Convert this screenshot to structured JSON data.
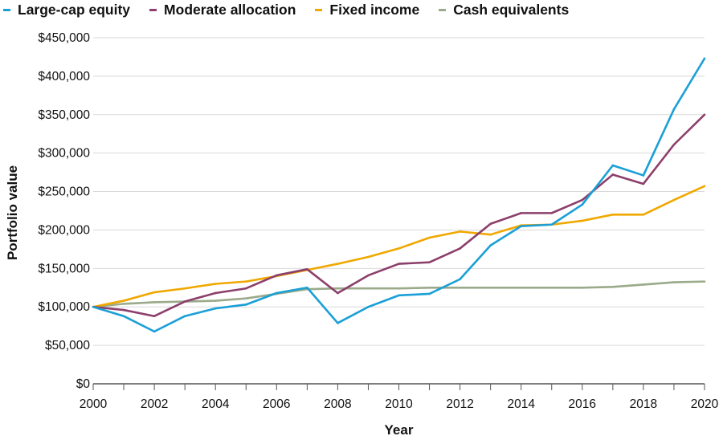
{
  "chart_data": {
    "type": "line",
    "title": "",
    "xlabel": "Year",
    "ylabel": "Portfolio value",
    "xlim": [
      2000,
      2020
    ],
    "ylim": [
      0,
      450000
    ],
    "grid": "horizontal",
    "legend_position": "top-left",
    "x": [
      2000,
      2001,
      2002,
      2003,
      2004,
      2005,
      2006,
      2007,
      2008,
      2009,
      2010,
      2011,
      2012,
      2013,
      2014,
      2015,
      2016,
      2017,
      2018,
      2019,
      2020
    ],
    "x_tick_labels": [
      "2000",
      "2002",
      "2004",
      "2006",
      "2008",
      "2010",
      "2012",
      "2014",
      "2016",
      "2018",
      "2020"
    ],
    "x_tick_values": [
      2000,
      2002,
      2004,
      2006,
      2008,
      2010,
      2012,
      2014,
      2016,
      2018,
      2020
    ],
    "y_tick_labels": [
      "$0",
      "$50,000",
      "$100,000",
      "$150,000",
      "$200,000",
      "$250,000",
      "$300,000",
      "$350,000",
      "$400,000",
      "$450,000"
    ],
    "y_tick_values": [
      0,
      50000,
      100000,
      150000,
      200000,
      250000,
      300000,
      350000,
      400000,
      450000
    ],
    "series": [
      {
        "name": "Large-cap equity",
        "color": "#1a9fd6",
        "values": [
          100000,
          88000,
          68000,
          88000,
          98000,
          103000,
          118000,
          125000,
          79000,
          100000,
          115000,
          117000,
          136000,
          180000,
          205000,
          207000,
          233000,
          284000,
          271000,
          357000,
          423000
        ]
      },
      {
        "name": "Moderate allocation",
        "color": "#8c3f6b",
        "values": [
          100000,
          96000,
          88000,
          107000,
          118000,
          124000,
          141000,
          149000,
          118000,
          141000,
          156000,
          158000,
          176000,
          208000,
          222000,
          222000,
          239000,
          272000,
          260000,
          311000,
          350000
        ]
      },
      {
        "name": "Fixed income",
        "color": "#f0a800",
        "values": [
          100000,
          108000,
          119000,
          124000,
          130000,
          133000,
          140000,
          148000,
          156000,
          165000,
          176000,
          190000,
          198000,
          194000,
          206000,
          207000,
          212000,
          220000,
          220000,
          239000,
          257000
        ]
      },
      {
        "name": "Cash equivalents",
        "color": "#9aaa8a",
        "values": [
          100000,
          104000,
          106000,
          107000,
          108000,
          111000,
          117000,
          123000,
          124000,
          124000,
          124000,
          125000,
          125000,
          125000,
          125000,
          125000,
          125000,
          126000,
          129000,
          132000,
          133000
        ]
      }
    ]
  }
}
